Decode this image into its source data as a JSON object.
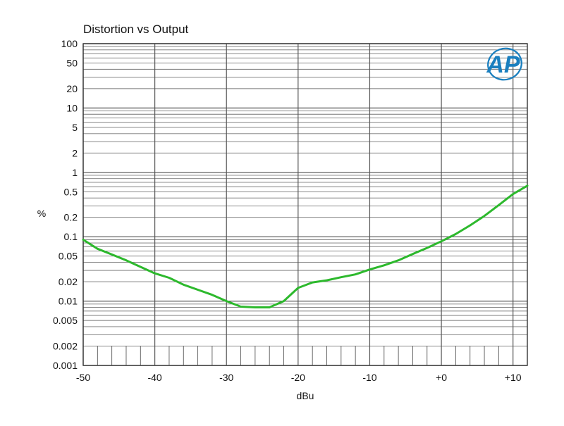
{
  "chart_data": {
    "type": "line",
    "title": "Distortion vs Output",
    "xlabel": "dBu",
    "ylabel": "%",
    "xlim": [
      -50,
      12
    ],
    "ylim": [
      0.001,
      100
    ],
    "y_scale": "log",
    "grid": true,
    "x_ticks": [
      {
        "value": -50,
        "label": "-50"
      },
      {
        "value": -40,
        "label": "-40"
      },
      {
        "value": -30,
        "label": "-30"
      },
      {
        "value": -20,
        "label": "-20"
      },
      {
        "value": -10,
        "label": "-10"
      },
      {
        "value": 0,
        "label": "+0"
      },
      {
        "value": 10,
        "label": "+10"
      }
    ],
    "y_ticks": [
      {
        "value": 100,
        "label": "100"
      },
      {
        "value": 50,
        "label": "50"
      },
      {
        "value": 20,
        "label": "20"
      },
      {
        "value": 10,
        "label": "10"
      },
      {
        "value": 5,
        "label": "5"
      },
      {
        "value": 2,
        "label": "2"
      },
      {
        "value": 1,
        "label": "1"
      },
      {
        "value": 0.5,
        "label": "0.5"
      },
      {
        "value": 0.2,
        "label": "0.2"
      },
      {
        "value": 0.1,
        "label": "0.1"
      },
      {
        "value": 0.05,
        "label": "0.05"
      },
      {
        "value": 0.02,
        "label": "0.02"
      },
      {
        "value": 0.01,
        "label": "0.01"
      },
      {
        "value": 0.005,
        "label": "0.005"
      },
      {
        "value": 0.002,
        "label": "0.002"
      },
      {
        "value": 0.001,
        "label": "0.001"
      }
    ],
    "series": [
      {
        "color": "#2db92d",
        "x": [
          -50,
          -48,
          -46,
          -44,
          -42,
          -40,
          -38,
          -36,
          -34,
          -32,
          -30,
          -28,
          -26,
          -24,
          -22,
          -20,
          -18,
          -16,
          -14,
          -12,
          -10,
          -8,
          -6,
          -4,
          -2,
          0,
          2,
          4,
          6,
          8,
          10,
          12
        ],
        "y": [
          0.09,
          0.065,
          0.053,
          0.043,
          0.034,
          0.027,
          0.023,
          0.018,
          0.015,
          0.0125,
          0.01,
          0.0082,
          0.008,
          0.008,
          0.01,
          0.016,
          0.0195,
          0.021,
          0.0235,
          0.026,
          0.031,
          0.036,
          0.043,
          0.054,
          0.067,
          0.085,
          0.11,
          0.15,
          0.21,
          0.31,
          0.46,
          0.62
        ]
      }
    ]
  },
  "logo": {
    "text": "AP",
    "color": "#1a7fbf"
  }
}
